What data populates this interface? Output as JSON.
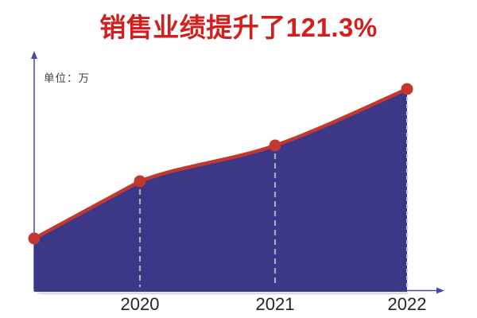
{
  "page": {
    "background": "#ffffff"
  },
  "title": {
    "text": "销售业绩提升了121.3%",
    "color": "#d31e1e"
  },
  "axis": {
    "unit_label": "单位：万",
    "color": "#4a47ad",
    "label_color": "#3f3f3f"
  },
  "chart_data": {
    "type": "area",
    "title": "销售业绩提升了121.3%",
    "ylabel": "单位：万",
    "categories": [
      "",
      "2020",
      "2021",
      "2022"
    ],
    "values": [
      66,
      138,
      183,
      254
    ],
    "value_note": "y-axis has no numeric ticks; values are relative heights estimated from the figure",
    "ylim": [
      0,
      300
    ],
    "grid": false,
    "legend": false,
    "smooth": true,
    "markers": true,
    "line_color": "#c2382f",
    "marker_color": "#c2382f",
    "fill_color": "#3c3787",
    "guide_color": "#9fb0bc",
    "edge_guide_color": "#bcc7cd",
    "x_axis_label_color": "#252525"
  }
}
